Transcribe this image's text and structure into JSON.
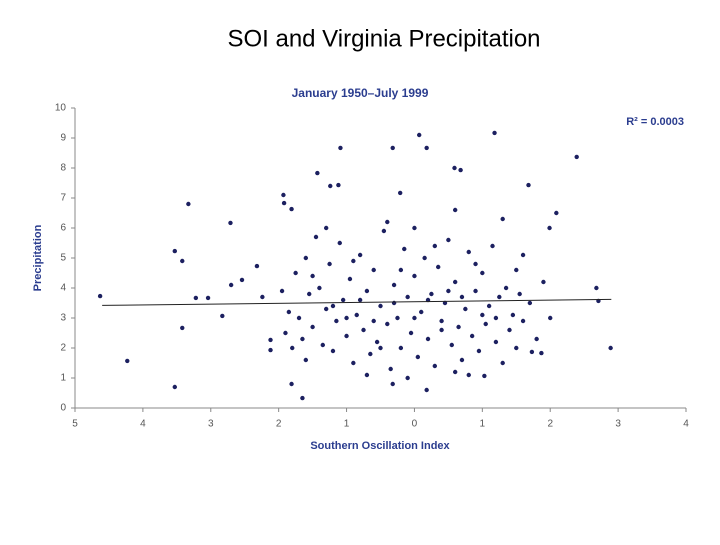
{
  "slide_title": "SOI and Virginia Precipitation",
  "chart_data": {
    "type": "scatter",
    "title": "January 1950–July 1999",
    "annotation": "R² = 0.0003",
    "xlabel": "Southern Oscillation Index",
    "ylabel": "Precipitation",
    "color": "#1c2060",
    "xlim": [
      -5,
      4
    ],
    "ylim": [
      0,
      10
    ],
    "xticks": [
      {
        "value": -5,
        "label": "5"
      },
      {
        "value": -4,
        "label": "4"
      },
      {
        "value": -3,
        "label": "3"
      },
      {
        "value": -2,
        "label": "2"
      },
      {
        "value": -1,
        "label": "1"
      },
      0,
      1,
      2,
      3,
      4
    ],
    "yticks": [
      0,
      1,
      2,
      3,
      4,
      5,
      6,
      7,
      8,
      9,
      10
    ],
    "x": [
      -4.63,
      -4.23,
      -3.53,
      -3.42,
      -3.33,
      -3.53,
      -3.42,
      -3.22,
      -3.04,
      -2.83,
      -2.71,
      -2.7,
      -2.54,
      -2.32,
      -1.93,
      -1.92,
      -1.81,
      -1.43,
      -1.09,
      -1.12,
      -1.24,
      -0.32,
      0.07,
      0.18,
      1.18,
      2.39,
      1.68,
      0.59,
      0.68,
      -0.21,
      2.09,
      1.99,
      2.68,
      2.71,
      2.89,
      -1.81,
      -1.65,
      -0.32,
      0.18,
      0.6,
      1.03,
      1.73,
      1.87,
      -2.12,
      -2.12,
      -2.24,
      -1.9,
      -1.85,
      -1.8,
      -1.75,
      -1.7,
      -1.65,
      -1.6,
      -1.55,
      -1.5,
      -1.45,
      -1.4,
      -1.35,
      -1.3,
      -1.25,
      -1.2,
      -1.15,
      -1.1,
      -1.05,
      -1.0,
      -0.95,
      -0.9,
      -0.85,
      -0.8,
      -0.75,
      -0.7,
      -0.65,
      -0.6,
      -0.55,
      -0.5,
      -0.45,
      -0.4,
      -0.35,
      -0.3,
      -0.25,
      -0.2,
      -0.15,
      -0.1,
      -0.05,
      0.0,
      0.05,
      0.1,
      0.15,
      0.2,
      0.25,
      0.3,
      0.35,
      0.4,
      0.45,
      0.5,
      0.55,
      0.6,
      0.65,
      0.7,
      0.75,
      0.8,
      0.85,
      0.9,
      0.95,
      1.0,
      1.05,
      1.1,
      1.15,
      1.2,
      1.25,
      1.3,
      1.35,
      1.4,
      1.45,
      1.5,
      1.55,
      1.6,
      1.7,
      1.8,
      1.9,
      2.0,
      -1.95,
      -1.5,
      -1.0,
      -0.5,
      0.0,
      0.5,
      1.0,
      1.5,
      -0.8,
      -0.3,
      0.2,
      0.7,
      -1.2,
      1.2,
      -0.6,
      0.4,
      -0.9,
      0.9,
      -0.2,
      0.3,
      -1.6,
      1.6,
      -0.4,
      0.6,
      -1.3,
      1.3,
      0.0,
      -0.7,
      0.8,
      -0.1
    ],
    "values": [
      3.73,
      1.57,
      0.7,
      2.67,
      6.8,
      5.23,
      4.9,
      3.67,
      3.67,
      3.07,
      6.17,
      4.1,
      4.27,
      4.73,
      7.1,
      6.83,
      6.63,
      7.83,
      8.67,
      7.43,
      7.4,
      8.67,
      9.1,
      8.67,
      9.17,
      8.37,
      7.43,
      8.0,
      7.93,
      7.17,
      6.5,
      6.0,
      4.0,
      3.57,
      2.0,
      0.8,
      0.33,
      0.8,
      0.6,
      1.2,
      1.07,
      1.87,
      1.83,
      2.27,
      1.93,
      3.7,
      2.5,
      3.2,
      2.0,
      4.5,
      3.0,
      2.3,
      1.6,
      3.8,
      2.7,
      5.7,
      4.0,
      2.1,
      3.3,
      4.8,
      1.9,
      2.9,
      5.5,
      3.6,
      2.4,
      4.3,
      1.5,
      3.1,
      5.1,
      2.6,
      3.9,
      1.8,
      4.6,
      2.2,
      3.4,
      5.9,
      2.8,
      1.3,
      4.1,
      3.0,
      2.0,
      5.3,
      3.7,
      2.5,
      4.4,
      1.7,
      3.2,
      5.0,
      2.3,
      3.8,
      1.4,
      4.7,
      2.9,
      3.5,
      5.6,
      2.1,
      4.2,
      2.7,
      1.6,
      3.3,
      5.2,
      2.4,
      3.9,
      1.9,
      4.5,
      2.8,
      3.4,
      5.4,
      2.2,
      3.7,
      1.5,
      4.0,
      2.6,
      3.1,
      2.0,
      3.8,
      2.9,
      3.5,
      2.3,
      4.2,
      3.0,
      3.9,
      4.4,
      3.0,
      2.0,
      3.0,
      3.9,
      3.1,
      4.6,
      3.6,
      3.5,
      3.6,
      3.7,
      3.4,
      3.0,
      2.9,
      2.6,
      4.9,
      4.8,
      4.6,
      5.4,
      5.0,
      5.1,
      6.2,
      6.6,
      6.0,
      6.3,
      6.0,
      1.1,
      1.1,
      1.0
    ],
    "trendline": {
      "x": [
        -4.6,
        2.9
      ],
      "y": [
        3.42,
        3.62
      ]
    }
  }
}
